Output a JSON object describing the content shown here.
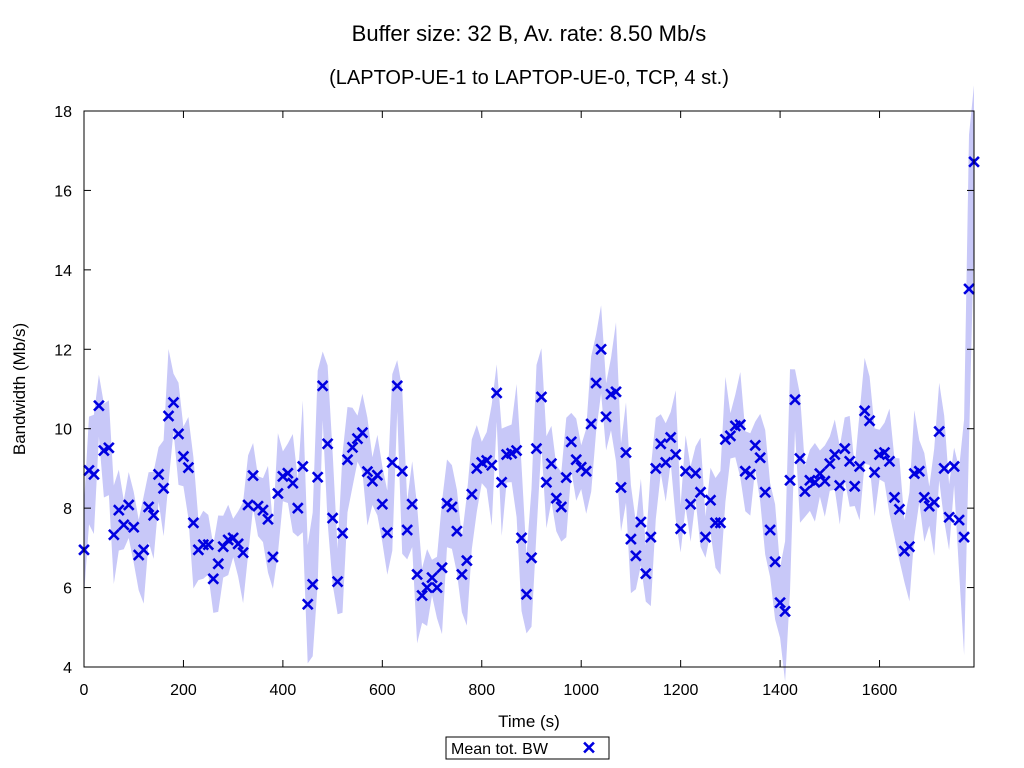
{
  "chart_data": {
    "type": "scatter",
    "title": "Buffer size: 32 B, Av. rate: 8.50 Mb/s",
    "subtitle": "(LAPTOP-UE-1 to LAPTOP-UE-0, TCP, 4 st.)",
    "xlabel": "Time (s)",
    "ylabel": "Bandwidth (Mb/s)",
    "xlim": [
      0,
      1790
    ],
    "ylim": [
      4,
      18
    ],
    "xticks": [
      0,
      200,
      400,
      600,
      800,
      1000,
      1200,
      1400,
      1600
    ],
    "yticks": [
      4,
      6,
      8,
      10,
      12,
      14,
      16,
      18
    ],
    "grid": false,
    "legend_position": "bottom-center",
    "marker_color": "#0000e0",
    "band_color": "#c8c8f8",
    "series": [
      {
        "name": "Mean tot. BW",
        "x": [
          0,
          10,
          20,
          30,
          40,
          50,
          60,
          70,
          80,
          90,
          100,
          110,
          120,
          130,
          140,
          150,
          160,
          170,
          180,
          190,
          200,
          210,
          220,
          230,
          240,
          250,
          260,
          270,
          280,
          290,
          300,
          310,
          320,
          330,
          340,
          350,
          360,
          370,
          380,
          390,
          400,
          410,
          420,
          430,
          440,
          450,
          460,
          470,
          480,
          490,
          500,
          510,
          520,
          530,
          540,
          550,
          560,
          570,
          580,
          590,
          600,
          610,
          620,
          630,
          640,
          650,
          660,
          670,
          680,
          690,
          700,
          710,
          720,
          730,
          740,
          750,
          760,
          770,
          780,
          790,
          800,
          810,
          820,
          830,
          840,
          850,
          860,
          870,
          880,
          890,
          900,
          910,
          920,
          930,
          940,
          950,
          960,
          970,
          980,
          990,
          1000,
          1010,
          1020,
          1030,
          1040,
          1050,
          1060,
          1070,
          1080,
          1090,
          1100,
          1110,
          1120,
          1130,
          1140,
          1150,
          1160,
          1170,
          1180,
          1190,
          1200,
          1210,
          1220,
          1230,
          1240,
          1250,
          1260,
          1270,
          1280,
          1290,
          1300,
          1310,
          1320,
          1330,
          1340,
          1350,
          1360,
          1370,
          1380,
          1390,
          1400,
          1410,
          1420,
          1430,
          1440,
          1450,
          1460,
          1470,
          1480,
          1490,
          1500,
          1510,
          1520,
          1530,
          1540,
          1550,
          1560,
          1570,
          1580,
          1590,
          1600,
          1610,
          1620,
          1630,
          1640,
          1650,
          1660,
          1670,
          1680,
          1690,
          1700,
          1710,
          1720,
          1730,
          1740,
          1750,
          1760,
          1770,
          1780,
          1790
        ],
        "y": [
          6.95,
          8.95,
          8.85,
          10.58,
          9.45,
          9.52,
          7.33,
          7.95,
          7.58,
          8.08,
          7.52,
          6.82,
          6.95,
          8.03,
          7.82,
          8.85,
          8.5,
          10.32,
          10.66,
          9.87,
          9.3,
          9.02,
          7.63,
          6.95,
          7.08,
          7.08,
          6.22,
          6.6,
          7.03,
          7.2,
          7.25,
          7.1,
          6.88,
          8.08,
          8.82,
          8.05,
          7.95,
          7.72,
          6.77,
          8.37,
          8.8,
          8.88,
          8.63,
          8.0,
          9.05,
          5.58,
          6.08,
          8.78,
          11.08,
          9.62,
          7.75,
          6.15,
          7.37,
          9.22,
          9.53,
          9.75,
          9.9,
          8.92,
          8.68,
          8.83,
          8.1,
          7.38,
          9.15,
          11.08,
          8.93,
          7.45,
          8.1,
          6.33,
          5.8,
          6.0,
          6.25,
          6.0,
          6.5,
          8.12,
          8.03,
          7.42,
          6.33,
          6.68,
          8.35,
          9.0,
          9.15,
          9.2,
          9.08,
          10.9,
          8.65,
          9.35,
          9.38,
          9.45,
          7.25,
          5.83,
          6.75,
          9.5,
          10.8,
          8.65,
          9.12,
          8.25,
          8.03,
          8.77,
          9.67,
          9.22,
          9.03,
          8.93,
          10.12,
          11.15,
          12.0,
          10.3,
          10.87,
          10.93,
          8.52,
          9.4,
          7.22,
          6.8,
          7.65,
          6.35,
          7.27,
          9.0,
          9.62,
          9.15,
          9.78,
          9.35,
          7.48,
          8.93,
          8.1,
          8.88,
          8.4,
          7.27,
          8.2,
          7.63,
          7.63,
          9.73,
          9.82,
          10.07,
          10.1,
          8.93,
          8.85,
          9.58,
          9.27,
          8.4,
          7.45,
          6.65,
          5.62,
          5.4,
          8.7,
          10.73,
          9.25,
          8.42,
          8.7,
          8.65,
          8.87,
          8.68,
          9.12,
          9.35,
          8.57,
          9.5,
          9.18,
          8.55,
          9.05,
          10.45,
          10.2,
          8.9,
          9.35,
          9.4,
          9.18,
          8.27,
          7.97,
          6.92,
          7.03,
          8.87,
          8.93,
          8.27,
          8.05,
          8.15,
          9.93,
          9.0,
          7.77,
          9.05,
          7.7,
          7.27,
          13.52,
          16.72
        ]
      }
    ]
  }
}
